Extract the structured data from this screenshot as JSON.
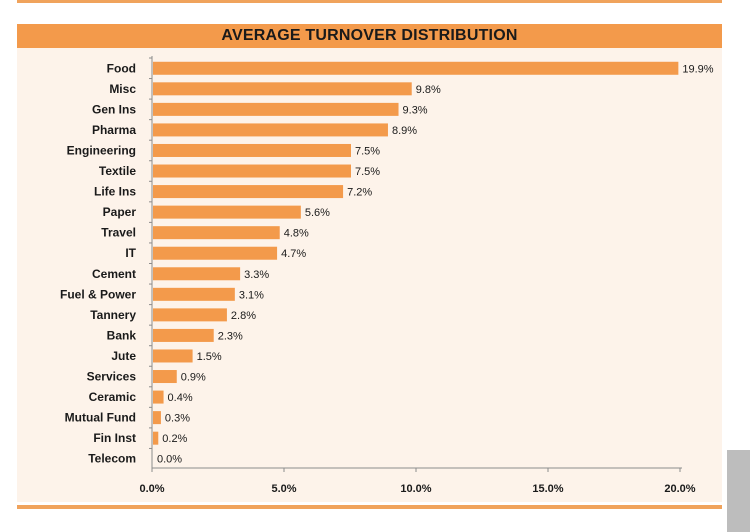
{
  "chart_data": {
    "type": "bar",
    "orientation": "horizontal",
    "title": "AVERAGE TURNOVER DISTRIBUTION",
    "categories": [
      "Food",
      "Misc",
      "Gen Ins",
      "Pharma",
      "Engineering",
      "Textile",
      "Life Ins",
      "Paper",
      "Travel",
      "IT",
      "Cement",
      "Fuel & Power",
      "Tannery",
      "Bank",
      "Jute",
      "Services",
      "Ceramic",
      "Mutual Fund",
      "Fin Inst",
      "Telecom"
    ],
    "values": [
      19.9,
      9.8,
      9.3,
      8.9,
      7.5,
      7.5,
      7.2,
      5.6,
      4.8,
      4.7,
      3.3,
      3.1,
      2.8,
      2.3,
      1.5,
      0.9,
      0.4,
      0.3,
      0.2,
      0.0
    ],
    "value_labels": [
      "19.9%",
      "9.8%",
      "9.3%",
      "8.9%",
      "7.5%",
      "7.5%",
      "7.2%",
      "5.6%",
      "4.8%",
      "4.7%",
      "3.3%",
      "3.1%",
      "2.8%",
      "2.3%",
      "1.5%",
      "0.9%",
      "0.4%",
      "0.3%",
      "0.2%",
      "0.0%"
    ],
    "xlim": [
      0,
      20
    ],
    "xticks": [
      0,
      5,
      10,
      15,
      20
    ],
    "xtick_labels": [
      "0.0%",
      "5.0%",
      "10.0%",
      "15.0%",
      "20.0%"
    ],
    "grid": false,
    "legend": "none",
    "colors": {
      "bar": "#f39a4b",
      "title_bar": "#f39a4b",
      "panel": "#fdf3ea",
      "axis": "#8c8c8c"
    }
  }
}
